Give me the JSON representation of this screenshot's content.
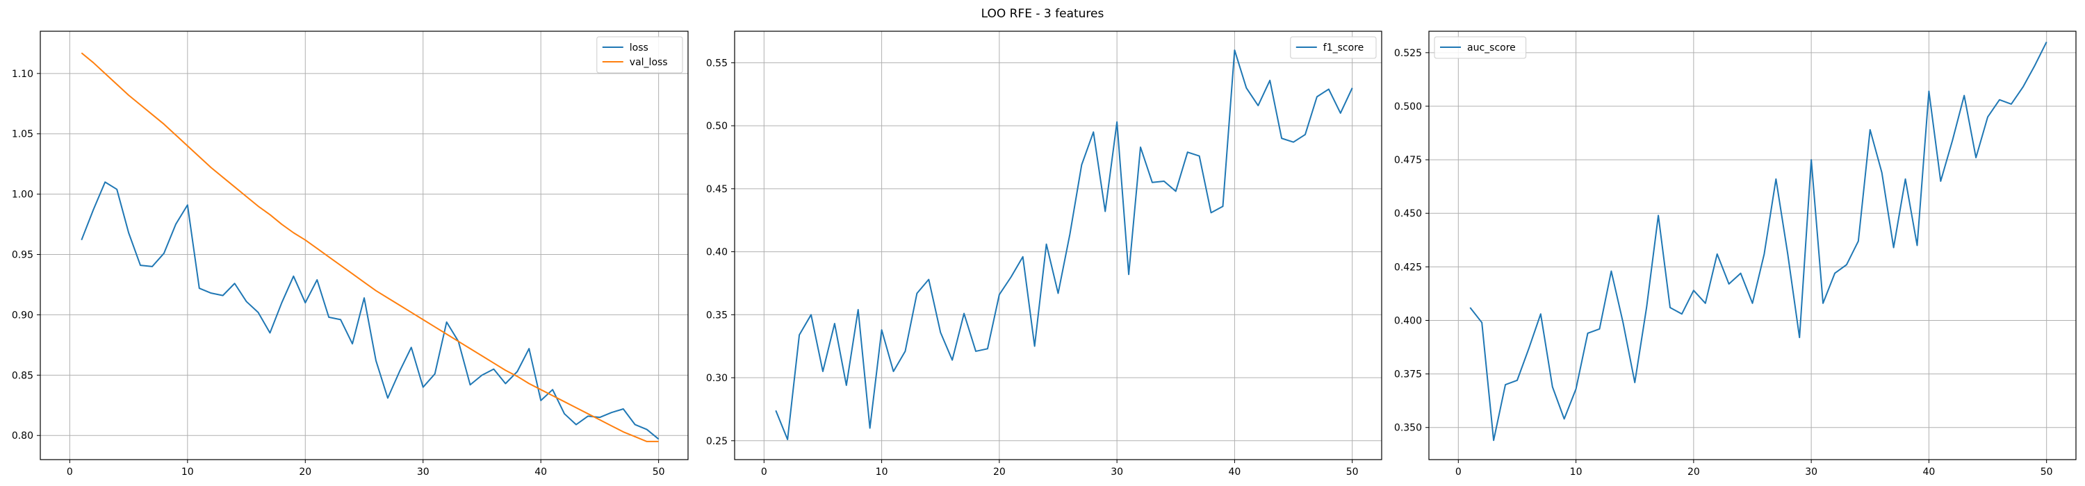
{
  "figure": {
    "title": "LOO RFE - 3 features"
  },
  "chart_data": [
    {
      "type": "line",
      "title": "",
      "xlabel": "",
      "ylabel": "",
      "xlim": [
        -2.5,
        52.5
      ],
      "ylim": [
        0.78,
        1.135
      ],
      "xticks": [
        0,
        10,
        20,
        30,
        40,
        50
      ],
      "yticks": [
        0.8,
        0.85,
        0.9,
        0.95,
        1.0,
        1.05,
        1.1
      ],
      "ytick_labels": [
        "0.80",
        "0.85",
        "0.90",
        "0.95",
        "1.00",
        "1.05",
        "1.10"
      ],
      "grid": true,
      "legend_position": "top-right",
      "x": [
        1,
        2,
        3,
        4,
        5,
        6,
        7,
        8,
        9,
        10,
        11,
        12,
        13,
        14,
        15,
        16,
        17,
        18,
        19,
        20,
        21,
        22,
        23,
        24,
        25,
        26,
        27,
        28,
        29,
        30,
        31,
        32,
        33,
        34,
        35,
        36,
        37,
        38,
        39,
        40,
        41,
        42,
        43,
        44,
        45,
        46,
        47,
        48,
        49,
        50
      ],
      "series": [
        {
          "name": "loss",
          "color": "#1f77b4",
          "values": [
            0.962,
            0.987,
            1.01,
            1.004,
            0.968,
            0.941,
            0.94,
            0.951,
            0.975,
            0.991,
            0.922,
            0.918,
            0.916,
            0.926,
            0.911,
            0.902,
            0.885,
            0.91,
            0.932,
            0.91,
            0.929,
            0.898,
            0.896,
            0.876,
            0.914,
            0.862,
            0.831,
            0.853,
            0.873,
            0.84,
            0.851,
            0.894,
            0.878,
            0.842,
            0.85,
            0.855,
            0.843,
            0.853,
            0.872,
            0.829,
            0.838,
            0.818,
            0.809,
            0.816,
            0.815,
            0.819,
            0.822,
            0.809,
            0.805,
            0.797
          ]
        },
        {
          "name": "val_loss",
          "color": "#ff7f0e",
          "values": [
            1.117,
            1.109,
            1.1,
            1.091,
            1.082,
            1.074,
            1.066,
            1.058,
            1.049,
            1.04,
            1.031,
            1.022,
            1.014,
            1.006,
            0.998,
            0.99,
            0.983,
            0.975,
            0.968,
            0.962,
            0.955,
            0.948,
            0.941,
            0.934,
            0.927,
            0.92,
            0.914,
            0.908,
            0.902,
            0.896,
            0.89,
            0.884,
            0.878,
            0.872,
            0.866,
            0.86,
            0.854,
            0.849,
            0.843,
            0.838,
            0.833,
            0.828,
            0.823,
            0.818,
            0.813,
            0.808,
            0.803,
            0.799,
            0.795,
            0.795
          ]
        }
      ]
    },
    {
      "type": "line",
      "title": "",
      "xlabel": "",
      "ylabel": "",
      "xlim": [
        -2.5,
        52.5
      ],
      "ylim": [
        0.235,
        0.575
      ],
      "xticks": [
        0,
        10,
        20,
        30,
        40,
        50
      ],
      "yticks": [
        0.25,
        0.3,
        0.35,
        0.4,
        0.45,
        0.5,
        0.55
      ],
      "ytick_labels": [
        "0.25",
        "0.30",
        "0.35",
        "0.40",
        "0.45",
        "0.50",
        "0.55"
      ],
      "grid": true,
      "legend_position": "top-right",
      "x": [
        1,
        2,
        3,
        4,
        5,
        6,
        7,
        8,
        9,
        10,
        11,
        12,
        13,
        14,
        15,
        16,
        17,
        18,
        19,
        20,
        21,
        22,
        23,
        24,
        25,
        26,
        27,
        28,
        29,
        30,
        31,
        32,
        33,
        34,
        35,
        36,
        37,
        38,
        39,
        40,
        41,
        42,
        43,
        44,
        45,
        46,
        47,
        48,
        49,
        50
      ],
      "series": [
        {
          "name": "f1_score",
          "color": "#1f77b4",
          "values": [
            0.274,
            0.251,
            0.334,
            0.35,
            0.305,
            0.343,
            0.294,
            0.354,
            0.26,
            0.338,
            0.305,
            0.321,
            0.367,
            0.378,
            0.336,
            0.314,
            0.351,
            0.321,
            0.323,
            0.366,
            0.38,
            0.396,
            0.325,
            0.406,
            0.367,
            0.414,
            0.469,
            0.495,
            0.432,
            0.503,
            0.382,
            0.483,
            0.455,
            0.456,
            0.448,
            0.479,
            0.476,
            0.431,
            0.436,
            0.56,
            0.53,
            0.516,
            0.536,
            0.49,
            0.487,
            0.493,
            0.523,
            0.529,
            0.51,
            0.53
          ]
        }
      ]
    },
    {
      "type": "line",
      "title": "",
      "xlabel": "",
      "ylabel": "",
      "xlim": [
        -2.5,
        52.5
      ],
      "ylim": [
        0.335,
        0.535
      ],
      "xticks": [
        0,
        10,
        20,
        30,
        40,
        50
      ],
      "yticks": [
        0.35,
        0.375,
        0.4,
        0.425,
        0.45,
        0.475,
        0.5,
        0.525
      ],
      "ytick_labels": [
        "0.350",
        "0.375",
        "0.400",
        "0.425",
        "0.450",
        "0.475",
        "0.500",
        "0.525"
      ],
      "grid": true,
      "legend_position": "top-left",
      "x": [
        1,
        2,
        3,
        4,
        5,
        6,
        7,
        8,
        9,
        10,
        11,
        12,
        13,
        14,
        15,
        16,
        17,
        18,
        19,
        20,
        21,
        22,
        23,
        24,
        25,
        26,
        27,
        28,
        29,
        30,
        31,
        32,
        33,
        34,
        35,
        36,
        37,
        38,
        39,
        40,
        41,
        42,
        43,
        44,
        45,
        46,
        47,
        48,
        49,
        50
      ],
      "series": [
        {
          "name": "auc_score",
          "color": "#1f77b4",
          "values": [
            0.406,
            0.399,
            0.344,
            0.37,
            0.372,
            0.387,
            0.403,
            0.369,
            0.354,
            0.368,
            0.394,
            0.396,
            0.423,
            0.399,
            0.371,
            0.406,
            0.449,
            0.406,
            0.403,
            0.414,
            0.408,
            0.431,
            0.417,
            0.422,
            0.408,
            0.431,
            0.466,
            0.431,
            0.392,
            0.475,
            0.408,
            0.422,
            0.426,
            0.437,
            0.489,
            0.469,
            0.434,
            0.466,
            0.435,
            0.507,
            0.465,
            0.484,
            0.505,
            0.476,
            0.495,
            0.503,
            0.501,
            0.509,
            0.519,
            0.53
          ]
        }
      ]
    }
  ]
}
